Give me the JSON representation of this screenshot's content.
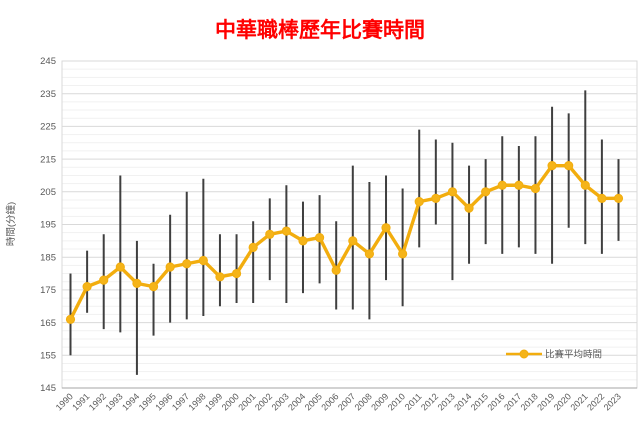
{
  "chart": {
    "title": "中華職棒歷年比賽時間",
    "ylabel": "時間(分鐘)",
    "legend_label": "比賽平均時間"
  },
  "chart_data": {
    "type": "line",
    "title": "中華職棒歷年比賽時間",
    "xlabel": "",
    "ylabel": "時間(分鐘)",
    "legend": [
      "比賽平均時間"
    ],
    "legend_position": "inside-bottom-right",
    "grid": true,
    "ylim": [
      145,
      245
    ],
    "y_major_ticks": [
      145,
      155,
      165,
      175,
      185,
      195,
      205,
      215,
      225,
      235,
      245
    ],
    "y_minor_unit": 2.5,
    "x_categories": [
      "1990",
      "1991",
      "1992",
      "1993",
      "1994",
      "1995",
      "1996",
      "1997",
      "1998",
      "1999",
      "2000",
      "2001",
      "2002",
      "2003",
      "2004",
      "2005",
      "2006",
      "2007",
      "2008",
      "2009",
      "2010",
      "2011",
      "2012",
      "2013",
      "2014",
      "2015",
      "2016",
      "2017",
      "2018",
      "2019",
      "2020",
      "2021",
      "2022",
      "2023"
    ],
    "series": [
      {
        "name": "比賽平均時間",
        "type": "line-with-markers",
        "values": [
          166,
          176,
          178,
          182,
          177,
          176,
          182,
          183,
          184,
          179,
          180,
          188,
          192,
          193,
          190,
          191,
          181,
          190,
          186,
          194,
          186,
          202,
          203,
          205,
          200,
          205,
          207,
          207,
          206,
          213,
          213,
          207,
          203,
          203
        ]
      },
      {
        "name": "range-high-low-bars",
        "type": "error-bars",
        "low": [
          155,
          168,
          163,
          162,
          149,
          161,
          165,
          166,
          167,
          170,
          171,
          171,
          178,
          171,
          174,
          177,
          169,
          169,
          166,
          178,
          170,
          188,
          195,
          178,
          183,
          189,
          186,
          188,
          186,
          183,
          194,
          189,
          186,
          190
        ],
        "high": [
          180,
          187,
          192,
          210,
          190,
          183,
          198,
          205,
          209,
          192,
          192,
          196,
          203,
          207,
          202,
          204,
          196,
          213,
          208,
          210,
          206,
          224,
          221,
          220,
          213,
          215,
          222,
          219,
          222,
          231,
          229,
          236,
          221,
          215
        ]
      }
    ],
    "colors": {
      "line": "#F2AD0E",
      "marker": "#F5B419",
      "error_bar": "#3F3F3F",
      "title": "#FF0000",
      "axis_text": "#595959",
      "grid_major": "#D9D9D9",
      "grid_minor": "#F1F1F1",
      "axis_line": "#A6A6A6",
      "plot_border": "#D9D9D9"
    }
  }
}
